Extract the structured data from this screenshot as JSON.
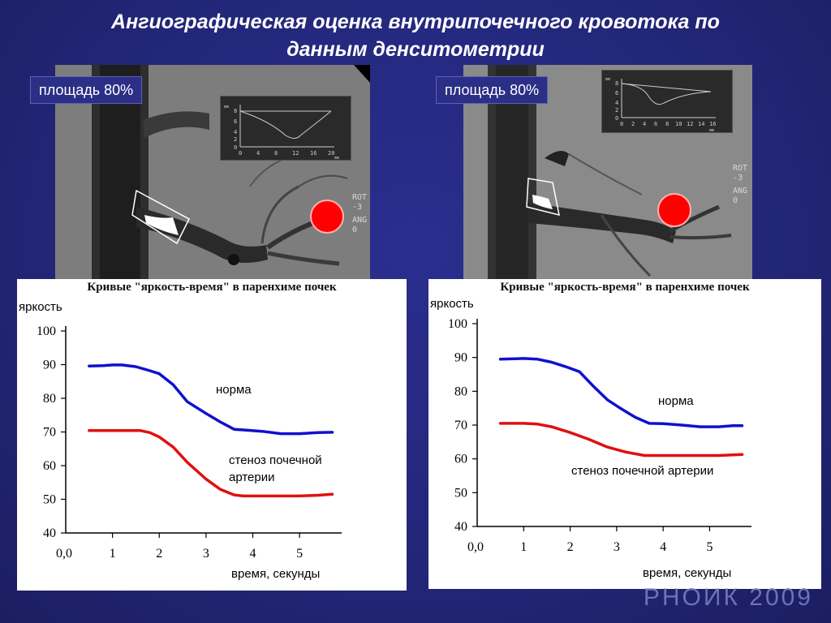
{
  "slide": {
    "title_line1": "Ангиографическая оценка внутрипочечного кровотока по",
    "title_line2": "данным денситометрии",
    "watermark": "РНОИК 2009"
  },
  "panels": [
    {
      "area_label": "площадь 80%",
      "side_text": [
        "ROT",
        "-3",
        "ANG",
        "0"
      ],
      "mini_plot": {
        "y_ticks": [
          "8",
          "6",
          "4",
          "2",
          "0"
        ],
        "x_ticks": [
          "0",
          "4",
          "8",
          "12",
          "16",
          "20"
        ],
        "unit": "mm",
        "y_unit": "mm"
      }
    },
    {
      "area_label": "площадь 80%",
      "side_text": [
        "ROT",
        "-3",
        "ANG",
        "0"
      ],
      "mini_plot": {
        "y_ticks": [
          "8",
          "6",
          "4",
          "2",
          "0"
        ],
        "x_ticks": [
          "0",
          "2",
          "4",
          "6",
          "8",
          "10",
          "12",
          "14",
          "16"
        ],
        "unit": "mm",
        "y_unit": "mm"
      }
    }
  ],
  "chart_data": [
    {
      "type": "line",
      "title": "Кривые \"яркость-время\" в паренхиме почек",
      "ylabel": "яркость",
      "xlabel": "время, секунды",
      "ylim": [
        40,
        100
      ],
      "xlim": [
        0,
        5.9
      ],
      "y_ticks": [
        "100",
        "90",
        "80",
        "70",
        "60",
        "50",
        "40"
      ],
      "x_ticks": [
        "0,0",
        "1",
        "2",
        "3",
        "4",
        "5"
      ],
      "series": [
        {
          "name": "норма",
          "color": "#1010d0",
          "x": [
            0.5,
            0.8,
            1.0,
            1.2,
            1.5,
            1.8,
            2.0,
            2.3,
            2.6,
            3.0,
            3.3,
            3.6,
            3.8,
            4.2,
            4.6,
            5.0,
            5.4,
            5.7
          ],
          "y": [
            89.6,
            89.7,
            89.9,
            89.9,
            89.4,
            88.2,
            87.3,
            84.0,
            79.0,
            75.5,
            73.0,
            70.8,
            70.6,
            70.2,
            69.5,
            69.5,
            69.8,
            69.9
          ]
        },
        {
          "name": "стеноз почечной артерии",
          "name_lines": [
            "стеноз почечной",
            "артерии"
          ],
          "color": "#e01010",
          "x": [
            0.5,
            0.8,
            1.0,
            1.3,
            1.6,
            1.8,
            2.0,
            2.3,
            2.6,
            3.0,
            3.3,
            3.6,
            3.8,
            4.2,
            4.6,
            5.0,
            5.4,
            5.7
          ],
          "y": [
            70.4,
            70.4,
            70.4,
            70.4,
            70.4,
            69.8,
            68.5,
            65.5,
            61.0,
            56.0,
            53.0,
            51.3,
            51.0,
            51.0,
            51.0,
            51.0,
            51.2,
            51.5
          ]
        }
      ]
    },
    {
      "type": "line",
      "title": "Кривые \"яркость-время\" в паренхиме почек",
      "ylabel": "яркость",
      "xlabel": "время, секунды",
      "ylim": [
        40,
        100
      ],
      "xlim": [
        0,
        5.9
      ],
      "y_ticks": [
        "100",
        "90",
        "80",
        "70",
        "60",
        "50",
        "40"
      ],
      "x_ticks": [
        "0,0",
        "1",
        "2",
        "3",
        "4",
        "5"
      ],
      "series": [
        {
          "name": "норма",
          "color": "#1010d0",
          "x": [
            0.5,
            0.8,
            1.0,
            1.3,
            1.6,
            1.9,
            2.2,
            2.5,
            2.8,
            3.1,
            3.4,
            3.7,
            4.0,
            4.4,
            4.8,
            5.2,
            5.5,
            5.7
          ],
          "y": [
            89.5,
            89.6,
            89.7,
            89.5,
            88.6,
            87.3,
            85.8,
            81.5,
            77.5,
            74.8,
            72.3,
            70.5,
            70.4,
            70.0,
            69.5,
            69.5,
            69.8,
            69.8
          ]
        },
        {
          "name": "стеноз почечной артерии",
          "name_lines": [
            "стеноз почечной артерии"
          ],
          "color": "#e01010",
          "x": [
            0.5,
            0.8,
            1.0,
            1.3,
            1.6,
            2.0,
            2.4,
            2.8,
            3.2,
            3.6,
            4.0,
            4.4,
            4.8,
            5.2,
            5.5,
            5.7
          ],
          "y": [
            70.5,
            70.5,
            70.5,
            70.3,
            69.5,
            67.8,
            65.8,
            63.5,
            62.0,
            61.0,
            61.0,
            61.0,
            61.0,
            61.0,
            61.2,
            61.3
          ]
        }
      ]
    }
  ]
}
